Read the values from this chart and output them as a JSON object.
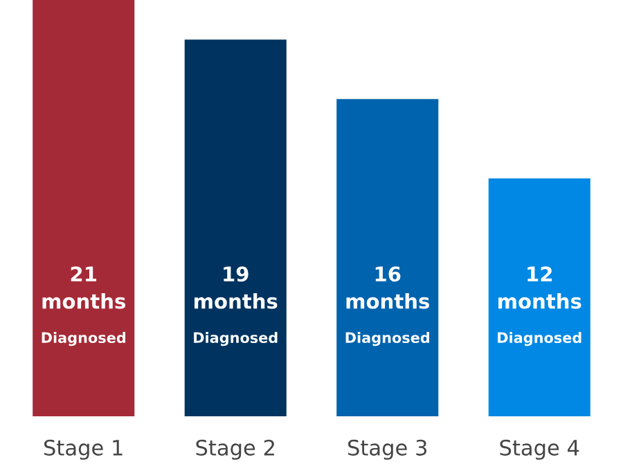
{
  "chart_data": {
    "type": "bar",
    "categories": [
      "Stage 1",
      "Stage 2",
      "Stage 3",
      "Stage 4"
    ],
    "values": [
      21,
      19,
      16,
      12
    ],
    "colors": [
      "#a52a37",
      "#003360",
      "#0063ae",
      "#0088e4"
    ],
    "value_labels": [
      "21 months",
      "19 months",
      "16 months",
      "12 months"
    ],
    "annotations": [
      "Diagnosed",
      "Diagnosed",
      "Diagnosed",
      "Diagnosed"
    ],
    "grid": false,
    "legend": false
  }
}
